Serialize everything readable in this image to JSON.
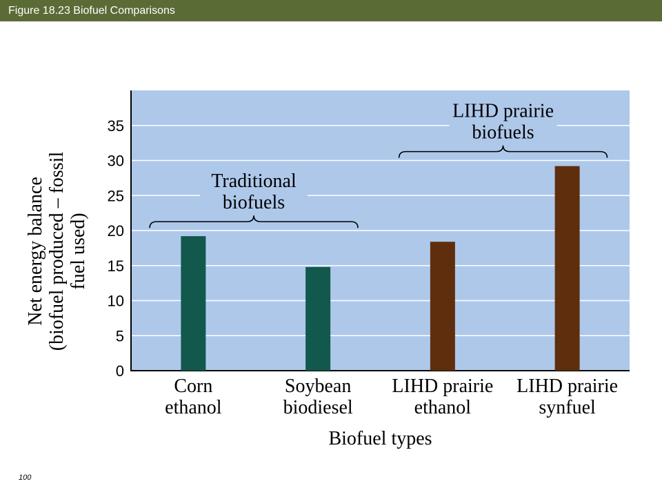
{
  "header": {
    "title": "Figure 18.23  Biofuel Comparisons"
  },
  "footer": {
    "page_number": "100"
  },
  "colors": {
    "header_bar": "#5b6b36",
    "plot_bg": "#aec8ea",
    "gridline": "#ffffff",
    "traditional": "#13584d",
    "lihd": "#5f2e0d"
  },
  "chart_data": {
    "type": "bar",
    "categories": [
      [
        "Corn",
        "ethanol"
      ],
      [
        "Soybean",
        "biodiesel"
      ],
      [
        "LIHD prairie",
        "ethanol"
      ],
      [
        "LIHD prairie",
        "synfuel"
      ]
    ],
    "values": [
      19.2,
      14.8,
      18.4,
      29.2
    ],
    "bar_colors": [
      "#13584d",
      "#13584d",
      "#5f2e0d",
      "#5f2e0d"
    ],
    "xlabel": "Biofuel types",
    "ylabel": [
      "Net energy balance",
      "(biofuel produced – fossil",
      "fuel used)"
    ],
    "ylim": [
      0,
      40
    ],
    "yticks": [
      0,
      5,
      10,
      15,
      20,
      25,
      30,
      35
    ],
    "grid": true,
    "groups": [
      {
        "label": [
          "Traditional",
          "biofuels"
        ],
        "from": 0,
        "to": 1
      },
      {
        "label": [
          "LIHD prairie",
          "biofuels"
        ],
        "from": 2,
        "to": 3
      }
    ]
  }
}
